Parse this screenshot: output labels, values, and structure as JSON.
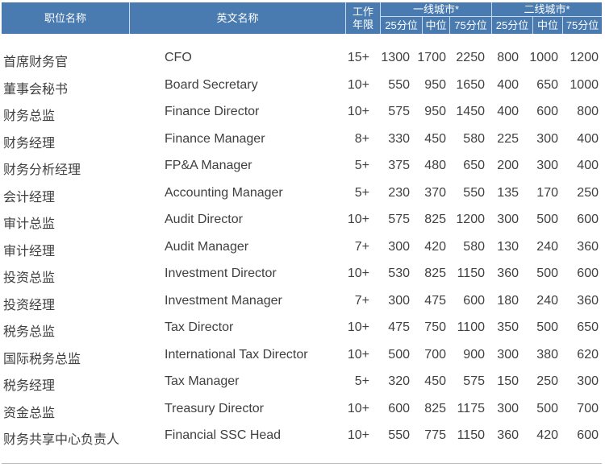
{
  "header": {
    "title_cn": "职位名称",
    "title_en": "英文名称",
    "years": "工作年限",
    "tier1": "一线城市*",
    "tier2": "二线城市*",
    "p25": "25分位",
    "p50": "中位",
    "p75": "75分位"
  },
  "rows": [
    [
      "首席财务官",
      "CFO",
      "15+",
      "1300",
      "1700",
      "2250",
      "800",
      "1000",
      "1200"
    ],
    [
      "董事会秘书",
      "Board Secretary",
      "10+",
      "550",
      "950",
      "1650",
      "400",
      "650",
      "1000"
    ],
    [
      "财务总监",
      "Finance Director",
      "10+",
      "575",
      "950",
      "1450",
      "400",
      "600",
      "800"
    ],
    [
      "财务经理",
      "Finance Manager",
      "8+",
      "330",
      "450",
      "580",
      "225",
      "300",
      "400"
    ],
    [
      "财务分析经理",
      "FP&A Manager",
      "5+",
      "375",
      "480",
      "650",
      "200",
      "300",
      "400"
    ],
    [
      "会计经理",
      "Accounting Manager",
      "5+",
      "230",
      "370",
      "550",
      "135",
      "170",
      "250"
    ],
    [
      "审计总监",
      "Audit Director",
      "10+",
      "575",
      "825",
      "1200",
      "300",
      "500",
      "600"
    ],
    [
      "审计经理",
      "Audit Manager",
      "7+",
      "300",
      "420",
      "580",
      "130",
      "240",
      "360"
    ],
    [
      "投资总监",
      "Investment Director",
      "10+",
      "530",
      "825",
      "1150",
      "360",
      "500",
      "600"
    ],
    [
      "投资经理",
      "Investment Manager",
      "7+",
      "300",
      "475",
      "600",
      "180",
      "240",
      "360"
    ],
    [
      "税务总监",
      "Tax  Director",
      "10+",
      "475",
      "750",
      "1100",
      "350",
      "500",
      "650"
    ],
    [
      "国际税务总监",
      "International Tax Director",
      "10+",
      "500",
      "700",
      "900",
      "300",
      "380",
      "620"
    ],
    [
      "税务经理",
      "Tax  Manager",
      "5+",
      "320",
      "450",
      "575",
      "150",
      "250",
      "300"
    ],
    [
      "资金总监",
      "Treasury Director",
      "10+",
      "600",
      "825",
      "1175",
      "300",
      "500",
      "700"
    ],
    [
      "财务共享中心负责人",
      "Financial SSC Head",
      "10+",
      "550",
      "775",
      "1150",
      "360",
      "420",
      "600"
    ]
  ]
}
